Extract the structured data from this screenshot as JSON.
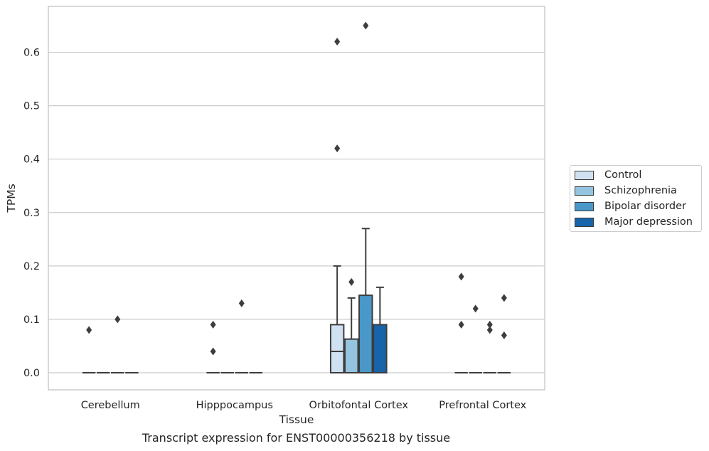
{
  "caption": "Transcript expression for ENST00000356218 by tissue",
  "chart_data": {
    "type": "boxplot",
    "title": "",
    "xlabel": "Tissue",
    "ylabel": "TPMs",
    "ylim": [
      -0.032,
      0.686
    ],
    "yticks": [
      "0.0",
      "0.1",
      "0.2",
      "0.3",
      "0.4",
      "0.5",
      "0.6"
    ],
    "grid": "horizontal",
    "legend_position": "right",
    "categories": [
      "Cerebellum",
      "Hipppocampus",
      "Orbitofontal Cortex",
      "Prefrontal Cortex"
    ],
    "series": [
      {
        "name": "Control",
        "color": "#d0e1f2",
        "boxes": [
          {
            "q1": 0,
            "median": 0,
            "q3": 0,
            "whisker_low": 0,
            "whisker_high": 0,
            "outliers": [
              0.08
            ]
          },
          {
            "q1": 0,
            "median": 0,
            "q3": 0,
            "whisker_low": 0,
            "whisker_high": 0,
            "outliers": [
              0.09,
              0.04
            ]
          },
          {
            "q1": 0,
            "median": 0.04,
            "q3": 0.09,
            "whisker_low": 0,
            "whisker_high": 0.2,
            "outliers": [
              0.62,
              0.42
            ]
          },
          {
            "q1": 0,
            "median": 0,
            "q3": 0,
            "whisker_low": 0,
            "whisker_high": 0,
            "outliers": [
              0.18,
              0.09
            ]
          }
        ]
      },
      {
        "name": "Schizophrenia",
        "color": "#94c4df",
        "boxes": [
          {
            "q1": 0,
            "median": 0,
            "q3": 0,
            "whisker_low": 0,
            "whisker_high": 0,
            "outliers": []
          },
          {
            "q1": 0,
            "median": 0,
            "q3": 0,
            "whisker_low": 0,
            "whisker_high": 0,
            "outliers": []
          },
          {
            "q1": 0,
            "median": 0,
            "q3": 0.063,
            "whisker_low": 0,
            "whisker_high": 0.14,
            "outliers": [
              0.17
            ]
          },
          {
            "q1": 0,
            "median": 0,
            "q3": 0,
            "whisker_low": 0,
            "whisker_high": 0,
            "outliers": [
              0.12
            ]
          }
        ]
      },
      {
        "name": "Bipolar disorder",
        "color": "#4a98c9",
        "boxes": [
          {
            "q1": 0,
            "median": 0,
            "q3": 0,
            "whisker_low": 0,
            "whisker_high": 0,
            "outliers": [
              0.1
            ]
          },
          {
            "q1": 0,
            "median": 0,
            "q3": 0,
            "whisker_low": 0,
            "whisker_high": 0,
            "outliers": [
              0.13
            ]
          },
          {
            "q1": 0,
            "median": 0,
            "q3": 0.145,
            "whisker_low": 0,
            "whisker_high": 0.27,
            "outliers": [
              0.65
            ]
          },
          {
            "q1": 0,
            "median": 0,
            "q3": 0,
            "whisker_low": 0,
            "whisker_high": 0,
            "outliers": [
              0.09,
              0.08
            ]
          }
        ]
      },
      {
        "name": "Major depression",
        "color": "#1764ab",
        "boxes": [
          {
            "q1": 0,
            "median": 0,
            "q3": 0,
            "whisker_low": 0,
            "whisker_high": 0,
            "outliers": []
          },
          {
            "q1": 0,
            "median": 0,
            "q3": 0,
            "whisker_low": 0,
            "whisker_high": 0,
            "outliers": []
          },
          {
            "q1": 0,
            "median": 0,
            "q3": 0.09,
            "whisker_low": 0,
            "whisker_high": 0.16,
            "outliers": []
          },
          {
            "q1": 0,
            "median": 0,
            "q3": 0,
            "whisker_low": 0,
            "whisker_high": 0,
            "outliers": [
              0.14,
              0.07
            ]
          }
        ]
      }
    ]
  }
}
